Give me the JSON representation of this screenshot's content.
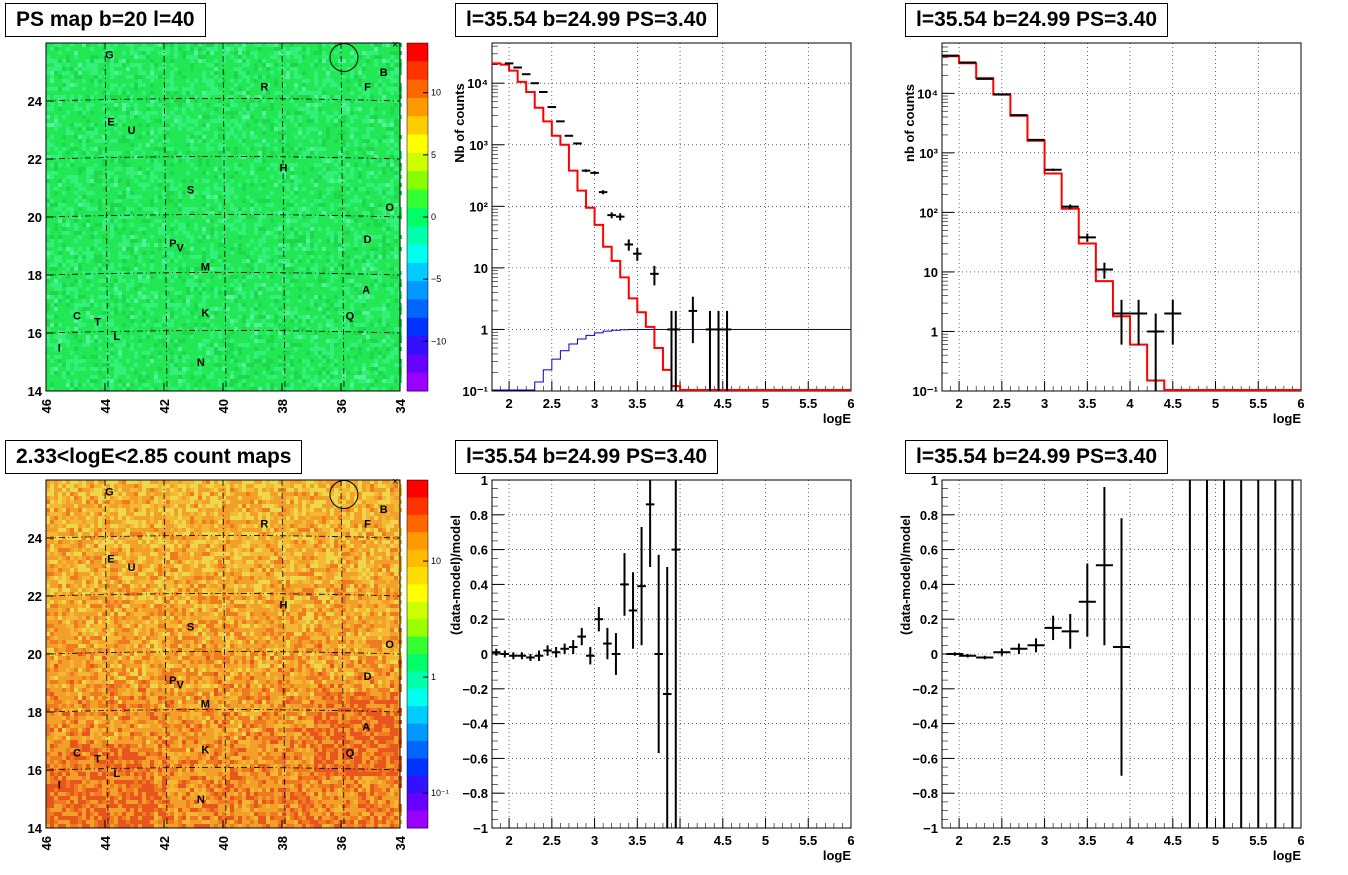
{
  "titles": {
    "ps_map": "PS map b=20 l=40",
    "spectrum_top_mid": "l=35.54 b=24.99 PS=3.40",
    "spectrum_top_right": "l=35.54 b=24.99 PS=3.40",
    "count_map": "2.33<logE<2.85 count maps",
    "residual_bottom_mid": "l=35.54 b=24.99 PS=3.40",
    "residual_bottom_right": "l=35.54 b=24.99 PS=3.40"
  },
  "colors": {
    "model_line": "#ff0000",
    "acceptance_line": "#0000cc",
    "data_points": "#000000",
    "ps_map_background": "#22e855",
    "count_map_background": "#f2a02a"
  },
  "chart_data": [
    {
      "id": "ps_map",
      "type": "heatmap",
      "title": "PS map b=20 l=40",
      "xlim": [
        46,
        34
      ],
      "ylim": [
        14,
        26
      ],
      "x_ticks": [
        "46",
        "44",
        "42",
        "40",
        "38",
        "36",
        "34"
      ],
      "y_ticks": [
        "14",
        "16",
        "18",
        "20",
        "22",
        "24"
      ],
      "colorbar": {
        "scale": "linear",
        "range": [
          -14,
          14
        ],
        "ticks": [
          "10",
          "5",
          "0",
          "−5",
          "−10"
        ]
      },
      "sources": [
        {
          "label": "G",
          "l": 43.85,
          "b": 25.6
        },
        {
          "label": "B",
          "l": 34.55,
          "b": 25.0
        },
        {
          "label": "R",
          "l": 38.6,
          "b": 24.5
        },
        {
          "label": "F",
          "l": 35.1,
          "b": 24.5
        },
        {
          "label": "E",
          "l": 43.8,
          "b": 23.3
        },
        {
          "label": "U",
          "l": 43.1,
          "b": 23.0
        },
        {
          "label": "H",
          "l": 37.95,
          "b": 21.7
        },
        {
          "label": "S",
          "l": 41.1,
          "b": 20.95
        },
        {
          "label": "O",
          "l": 34.35,
          "b": 20.35
        },
        {
          "label": "D",
          "l": 35.1,
          "b": 19.25
        },
        {
          "label": "P",
          "l": 41.7,
          "b": 19.1
        },
        {
          "label": "V",
          "l": 41.45,
          "b": 18.95
        },
        {
          "label": "M",
          "l": 40.6,
          "b": 18.3
        },
        {
          "label": "A",
          "l": 35.15,
          "b": 17.5
        },
        {
          "label": "C",
          "l": 44.95,
          "b": 16.6
        },
        {
          "label": "T",
          "l": 44.25,
          "b": 16.4
        },
        {
          "label": "K",
          "l": 40.6,
          "b": 16.7
        },
        {
          "label": "Q",
          "l": 35.7,
          "b": 16.6
        },
        {
          "label": "L",
          "l": 43.6,
          "b": 15.9
        },
        {
          "label": "I",
          "l": 45.55,
          "b": 15.5
        },
        {
          "label": "N",
          "l": 40.75,
          "b": 15.0
        }
      ],
      "circle": {
        "l": 35.9,
        "b": 25.5
      }
    },
    {
      "id": "count_map",
      "type": "heatmap",
      "title": "2.33<logE<2.85 count maps",
      "xlim": [
        46,
        34
      ],
      "ylim": [
        14,
        26
      ],
      "x_ticks": [
        "46",
        "44",
        "42",
        "40",
        "38",
        "36",
        "34"
      ],
      "y_ticks": [
        "14",
        "16",
        "18",
        "20",
        "22",
        "24"
      ],
      "colorbar": {
        "scale": "log",
        "range": [
          0.05,
          50
        ],
        "ticks": [
          "10",
          "1",
          "10⁻¹"
        ]
      },
      "circle": {
        "l": 35.9,
        "b": 25.5
      }
    },
    {
      "id": "spectrum_top_mid",
      "type": "line",
      "title": "l=35.54 b=24.99 PS=3.40",
      "xlabel": "logE",
      "ylabel": "Nb of counts",
      "xlim": [
        1.8,
        6
      ],
      "ylim": [
        0.1,
        45000
      ],
      "yscale": "log",
      "x_ticks": [
        "2",
        "2.5",
        "3",
        "3.5",
        "4",
        "4.5",
        "5",
        "5.5",
        "6"
      ],
      "y_ticks": [
        {
          "value": 0.1,
          "label": "10⁻¹"
        },
        {
          "value": 1,
          "label": "1"
        },
        {
          "value": 10,
          "label": "10"
        },
        {
          "value": 100,
          "label": "10²"
        },
        {
          "value": 1000,
          "label": "10³"
        },
        {
          "value": 10000,
          "label": "10⁴"
        }
      ],
      "model_edges": [
        1.8,
        1.9,
        2.0,
        2.1,
        2.2,
        2.3,
        2.4,
        2.5,
        2.6,
        2.7,
        2.8,
        2.9,
        3.0,
        3.1,
        3.2,
        3.3,
        3.4,
        3.5,
        3.6,
        3.7,
        3.8,
        3.9,
        4.0,
        4.1,
        4.2,
        4.3,
        6.0
      ],
      "model_values": [
        21000,
        20000,
        16000,
        10500,
        7200,
        4000,
        2400,
        1400,
        1000,
        380,
        180,
        95,
        50,
        22,
        13,
        7,
        3.2,
        1.9,
        1.1,
        0.5,
        0.22,
        0.12,
        0.1,
        0.1,
        0.1,
        0.1
      ],
      "acceptance_edges": [
        1.8,
        2.3,
        2.4,
        2.5,
        2.6,
        2.7,
        2.8,
        2.9,
        3.0,
        3.1,
        3.2,
        3.3,
        3.4,
        3.6,
        6.0
      ],
      "acceptance_values": [
        0.1,
        0.14,
        0.22,
        0.33,
        0.45,
        0.58,
        0.7,
        0.8,
        0.88,
        0.94,
        0.97,
        0.99,
        1.0,
        1.0
      ],
      "points": [
        {
          "x": 2.0,
          "y": 21000,
          "xerr": 0.05,
          "ylo": 20800,
          "yhi": 21200
        },
        {
          "x": 2.1,
          "y": 18000,
          "xerr": 0.05,
          "ylo": 17800,
          "yhi": 18200
        },
        {
          "x": 2.2,
          "y": 14000,
          "xerr": 0.05,
          "ylo": 13800,
          "yhi": 14200
        },
        {
          "x": 2.3,
          "y": 10000,
          "xerr": 0.05,
          "ylo": 9900,
          "yhi": 10100
        },
        {
          "x": 2.4,
          "y": 7200,
          "xerr": 0.05,
          "ylo": 7100,
          "yhi": 7300
        },
        {
          "x": 2.5,
          "y": 4100,
          "xerr": 0.05,
          "ylo": 4040,
          "yhi": 4160
        },
        {
          "x": 2.6,
          "y": 2400,
          "xerr": 0.05,
          "ylo": 2350,
          "yhi": 2450
        },
        {
          "x": 2.7,
          "y": 1400,
          "xerr": 0.05,
          "ylo": 1360,
          "yhi": 1440
        },
        {
          "x": 2.8,
          "y": 1050,
          "xerr": 0.05,
          "ylo": 1020,
          "yhi": 1080
        },
        {
          "x": 2.9,
          "y": 380,
          "xerr": 0.05,
          "ylo": 360,
          "yhi": 400
        },
        {
          "x": 3.0,
          "y": 350,
          "xerr": 0.05,
          "ylo": 330,
          "yhi": 370
        },
        {
          "x": 3.1,
          "y": 170,
          "xerr": 0.05,
          "ylo": 157,
          "yhi": 183
        },
        {
          "x": 3.2,
          "y": 72,
          "xerr": 0.05,
          "ylo": 64,
          "yhi": 80
        },
        {
          "x": 3.3,
          "y": 68,
          "xerr": 0.05,
          "ylo": 59,
          "yhi": 77
        },
        {
          "x": 3.4,
          "y": 24,
          "xerr": 0.05,
          "ylo": 19,
          "yhi": 29
        },
        {
          "x": 3.5,
          "y": 17,
          "xerr": 0.05,
          "ylo": 13,
          "yhi": 21
        },
        {
          "x": 3.7,
          "y": 8,
          "xerr": 0.05,
          "ylo": 5.2,
          "yhi": 10.8
        },
        {
          "x": 3.9,
          "y": 1,
          "xerr": 0.05,
          "ylo": 0.1,
          "yhi": 2
        },
        {
          "x": 4.15,
          "y": 2,
          "xerr": 0.05,
          "ylo": 0.6,
          "yhi": 3.4
        },
        {
          "x": 3.95,
          "y": 1,
          "xerr": 0.05,
          "ylo": 0.1,
          "yhi": 2
        },
        {
          "x": 4.35,
          "y": 1,
          "xerr": 0.05,
          "ylo": 0.1,
          "yhi": 2
        },
        {
          "x": 4.45,
          "y": 1,
          "xerr": 0.05,
          "ylo": 0.1,
          "yhi": 2
        },
        {
          "x": 4.55,
          "y": 1,
          "xerr": 0.05,
          "ylo": 0.1,
          "yhi": 2
        }
      ]
    },
    {
      "id": "spectrum_top_right",
      "type": "line",
      "title": "l=35.54 b=24.99 PS=3.40",
      "xlabel": "logE",
      "ylabel": "nb of counts",
      "xlim": [
        1.8,
        6
      ],
      "ylim": [
        0.1,
        70000
      ],
      "yscale": "log",
      "x_ticks": [
        "2",
        "2.5",
        "3",
        "3.5",
        "4",
        "4.5",
        "5",
        "5.5",
        "6"
      ],
      "y_ticks": [
        {
          "value": 0.1,
          "label": "10⁻¹"
        },
        {
          "value": 1,
          "label": "1"
        },
        {
          "value": 10,
          "label": "10"
        },
        {
          "value": 100,
          "label": "10²"
        },
        {
          "value": 1000,
          "label": "10³"
        },
        {
          "value": 10000,
          "label": "10⁴"
        }
      ],
      "model_edges": [
        1.8,
        2.0,
        2.2,
        2.4,
        2.6,
        2.8,
        3.0,
        3.2,
        3.4,
        3.6,
        3.8,
        4.0,
        4.2,
        4.4,
        6.0
      ],
      "model_values": [
        42000,
        32000,
        18000,
        9500,
        4200,
        1600,
        450,
        115,
        30,
        7,
        1.8,
        0.6,
        0.15,
        0.1
      ],
      "points": [
        {
          "x": 1.9,
          "y": 43000,
          "xerr": 0.1,
          "ylo": 42700,
          "yhi": 43300
        },
        {
          "x": 2.1,
          "y": 33000,
          "xerr": 0.1,
          "ylo": 32700,
          "yhi": 33300
        },
        {
          "x": 2.3,
          "y": 17500,
          "xerr": 0.1,
          "ylo": 17300,
          "yhi": 17700
        },
        {
          "x": 2.5,
          "y": 9600,
          "xerr": 0.1,
          "ylo": 9450,
          "yhi": 9750
        },
        {
          "x": 2.7,
          "y": 4300,
          "xerr": 0.1,
          "ylo": 4200,
          "yhi": 4400
        },
        {
          "x": 2.9,
          "y": 1650,
          "xerr": 0.1,
          "ylo": 1600,
          "yhi": 1700
        },
        {
          "x": 3.1,
          "y": 520,
          "xerr": 0.1,
          "ylo": 497,
          "yhi": 543
        },
        {
          "x": 3.3,
          "y": 125,
          "xerr": 0.1,
          "ylo": 114,
          "yhi": 136
        },
        {
          "x": 3.5,
          "y": 38,
          "xerr": 0.1,
          "ylo": 32,
          "yhi": 44
        },
        {
          "x": 3.7,
          "y": 11,
          "xerr": 0.1,
          "ylo": 7.7,
          "yhi": 14.3
        },
        {
          "x": 3.9,
          "y": 2,
          "xerr": 0.1,
          "ylo": 0.6,
          "yhi": 3.4
        },
        {
          "x": 4.1,
          "y": 2,
          "xerr": 0.1,
          "ylo": 0.6,
          "yhi": 3.4
        },
        {
          "x": 4.3,
          "y": 1,
          "xerr": 0.1,
          "ylo": 0.1,
          "yhi": 2
        },
        {
          "x": 4.5,
          "y": 2,
          "xerr": 0.1,
          "ylo": 0.6,
          "yhi": 3.4
        }
      ]
    },
    {
      "id": "residual_bottom_mid",
      "type": "scatter",
      "title": "l=35.54 b=24.99 PS=3.40",
      "xlabel": "logE",
      "ylabel": "(data-model)/model",
      "xlim": [
        1.8,
        6
      ],
      "ylim": [
        -1,
        1
      ],
      "x_ticks": [
        "2",
        "2.5",
        "3",
        "3.5",
        "4",
        "4.5",
        "5",
        "5.5",
        "6"
      ],
      "y_ticks": [
        "1",
        "0.8",
        "0.6",
        "0.4",
        "0.2",
        "0",
        "−0.2",
        "−0.4",
        "−0.6",
        "−0.8",
        "−1"
      ],
      "points": [
        {
          "x": 1.85,
          "y": 0.01,
          "xerr": 0.05,
          "ylo": -0.01,
          "yhi": 0.03
        },
        {
          "x": 1.95,
          "y": 0.0,
          "xerr": 0.05,
          "ylo": -0.02,
          "yhi": 0.02
        },
        {
          "x": 2.05,
          "y": -0.01,
          "xerr": 0.05,
          "ylo": -0.03,
          "yhi": 0.01
        },
        {
          "x": 2.15,
          "y": -0.01,
          "xerr": 0.05,
          "ylo": -0.03,
          "yhi": 0.01
        },
        {
          "x": 2.25,
          "y": -0.02,
          "xerr": 0.05,
          "ylo": -0.04,
          "yhi": 0.0
        },
        {
          "x": 2.35,
          "y": -0.01,
          "xerr": 0.05,
          "ylo": -0.04,
          "yhi": 0.02
        },
        {
          "x": 2.45,
          "y": 0.02,
          "xerr": 0.05,
          "ylo": -0.01,
          "yhi": 0.05
        },
        {
          "x": 2.55,
          "y": 0.01,
          "xerr": 0.05,
          "ylo": -0.02,
          "yhi": 0.04
        },
        {
          "x": 2.65,
          "y": 0.03,
          "xerr": 0.05,
          "ylo": 0.0,
          "yhi": 0.06
        },
        {
          "x": 2.75,
          "y": 0.04,
          "xerr": 0.05,
          "ylo": 0.0,
          "yhi": 0.08
        },
        {
          "x": 2.85,
          "y": 0.1,
          "xerr": 0.05,
          "ylo": 0.05,
          "yhi": 0.15
        },
        {
          "x": 2.95,
          "y": -0.01,
          "xerr": 0.05,
          "ylo": -0.06,
          "yhi": 0.04
        },
        {
          "x": 3.05,
          "y": 0.2,
          "xerr": 0.05,
          "ylo": 0.13,
          "yhi": 0.27
        },
        {
          "x": 3.15,
          "y": 0.06,
          "xerr": 0.05,
          "ylo": -0.03,
          "yhi": 0.15
        },
        {
          "x": 3.25,
          "y": 0.0,
          "xerr": 0.05,
          "ylo": -0.12,
          "yhi": 0.12
        },
        {
          "x": 3.35,
          "y": 0.4,
          "xerr": 0.05,
          "ylo": 0.22,
          "yhi": 0.58
        },
        {
          "x": 3.45,
          "y": 0.25,
          "xerr": 0.05,
          "ylo": 0.03,
          "yhi": 0.47
        },
        {
          "x": 3.55,
          "y": 0.39,
          "xerr": 0.05,
          "ylo": 0.05,
          "yhi": 0.73
        },
        {
          "x": 3.65,
          "y": 0.86,
          "xerr": 0.05,
          "ylo": 0.5,
          "yhi": 1.0
        },
        {
          "x": 3.75,
          "y": 0.0,
          "xerr": 0.05,
          "ylo": -0.57,
          "yhi": 0.57
        },
        {
          "x": 3.85,
          "y": -0.23,
          "xerr": 0.05,
          "ylo": -1.0,
          "yhi": 0.5
        },
        {
          "x": 3.95,
          "y": 0.6,
          "xerr": 0.05,
          "ylo": -1.0,
          "yhi": 1.0
        }
      ]
    },
    {
      "id": "residual_bottom_right",
      "type": "scatter",
      "title": "l=35.54 b=24.99 PS=3.40",
      "xlabel": "logE",
      "ylabel": "(data-model)/model",
      "xlim": [
        1.8,
        6
      ],
      "ylim": [
        -1,
        1
      ],
      "x_ticks": [
        "2",
        "2.5",
        "3",
        "3.5",
        "4",
        "4.5",
        "5",
        "5.5",
        "6"
      ],
      "y_ticks": [
        "1",
        "0.8",
        "0.6",
        "0.4",
        "0.2",
        "0",
        "−0.2",
        "−0.4",
        "−0.6",
        "−0.8",
        "−1"
      ],
      "points": [
        {
          "x": 1.95,
          "y": 0.0,
          "xerr": 0.1,
          "ylo": -0.01,
          "yhi": 0.01
        },
        {
          "x": 2.1,
          "y": -0.01,
          "xerr": 0.1,
          "ylo": -0.02,
          "yhi": 0.0
        },
        {
          "x": 2.3,
          "y": -0.02,
          "xerr": 0.1,
          "ylo": -0.03,
          "yhi": -0.01
        },
        {
          "x": 2.5,
          "y": 0.01,
          "xerr": 0.1,
          "ylo": -0.01,
          "yhi": 0.03
        },
        {
          "x": 2.7,
          "y": 0.03,
          "xerr": 0.1,
          "ylo": 0.0,
          "yhi": 0.06
        },
        {
          "x": 2.9,
          "y": 0.05,
          "xerr": 0.1,
          "ylo": 0.01,
          "yhi": 0.09
        },
        {
          "x": 3.1,
          "y": 0.15,
          "xerr": 0.1,
          "ylo": 0.08,
          "yhi": 0.22
        },
        {
          "x": 3.3,
          "y": 0.13,
          "xerr": 0.1,
          "ylo": 0.03,
          "yhi": 0.23
        },
        {
          "x": 3.5,
          "y": 0.3,
          "xerr": 0.1,
          "ylo": 0.1,
          "yhi": 0.52
        },
        {
          "x": 3.7,
          "y": 0.51,
          "xerr": 0.1,
          "ylo": 0.05,
          "yhi": 0.96
        },
        {
          "x": 3.9,
          "y": 0.04,
          "xerr": 0.1,
          "ylo": -0.7,
          "yhi": 0.78
        },
        {
          "x": 4.7,
          "y": 1.0,
          "xerr": 0,
          "ylo": -1.0,
          "yhi": 1.0
        },
        {
          "x": 4.9,
          "y": 1.0,
          "xerr": 0,
          "ylo": -1.0,
          "yhi": 1.0
        },
        {
          "x": 5.1,
          "y": 1.0,
          "xerr": 0,
          "ylo": -1.0,
          "yhi": 1.0
        },
        {
          "x": 5.3,
          "y": 1.0,
          "xerr": 0,
          "ylo": -1.0,
          "yhi": 1.0
        },
        {
          "x": 5.5,
          "y": 1.0,
          "xerr": 0,
          "ylo": -1.0,
          "yhi": 1.0
        },
        {
          "x": 5.7,
          "y": 1.0,
          "xerr": 0,
          "ylo": -1.0,
          "yhi": 1.0
        },
        {
          "x": 5.9,
          "y": 1.0,
          "xerr": 0,
          "ylo": -1.0,
          "yhi": 1.0
        }
      ]
    }
  ]
}
